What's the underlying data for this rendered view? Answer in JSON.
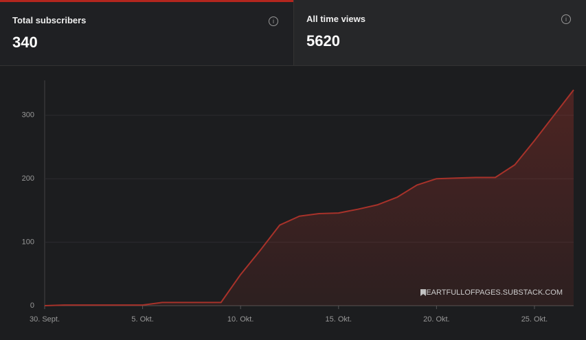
{
  "cards": [
    {
      "title": "Total subscribers",
      "value": "340"
    },
    {
      "title": "All time views",
      "value": "5620"
    }
  ],
  "chart_data": {
    "type": "area",
    "categories": [
      "30. Sept.",
      null,
      null,
      null,
      null,
      "5. Okt.",
      null,
      null,
      null,
      null,
      "10. Okt.",
      null,
      null,
      null,
      null,
      "15. Okt.",
      null,
      null,
      null,
      null,
      "20. Okt.",
      null,
      null,
      null,
      null,
      "25. Okt.",
      null,
      null
    ],
    "series": [
      {
        "name": "Subscribers",
        "color": "#a8322a",
        "values": [
          0,
          1,
          1,
          1,
          1,
          1,
          5,
          5,
          5,
          5,
          49,
          87,
          127,
          141,
          145,
          146,
          152,
          159,
          171,
          190,
          200,
          201,
          202,
          202,
          222,
          260,
          300,
          340
        ]
      }
    ],
    "ylim": [
      0,
      355
    ],
    "yticks": [
      0,
      100,
      200,
      300
    ],
    "grid": true,
    "watermark": "HEARTFULLOFPAGES.SUBSTACK.COM"
  }
}
